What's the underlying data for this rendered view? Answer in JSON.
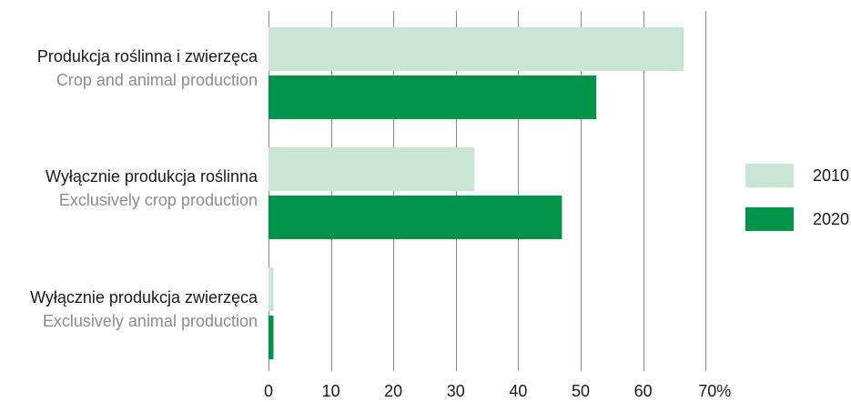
{
  "chart_data": {
    "type": "bar",
    "orientation": "horizontal",
    "categories": [
      {
        "label": "Produkcja roślinna i zwierzęca",
        "sublabel": "Crop and animal production"
      },
      {
        "label": "Wyłącznie produkcja roślinna",
        "sublabel": "Exclusively crop production"
      },
      {
        "label": "Wyłącznie produkcja zwierzęca",
        "sublabel": "Exclusively animal production"
      }
    ],
    "series": [
      {
        "name": "2010",
        "color": "#c9e5d3",
        "values": [
          66.5,
          33.0,
          0.8
        ]
      },
      {
        "name": "2020",
        "color": "#00944a",
        "values": [
          52.5,
          47.0,
          0.8
        ]
      }
    ],
    "xlim": [
      0,
      70
    ],
    "x_ticks": [
      0,
      10,
      20,
      30,
      40,
      50,
      60,
      70
    ],
    "x_tick_labels": [
      "0",
      "10",
      "20",
      "30",
      "40",
      "50",
      "60",
      "70%"
    ],
    "grid": true,
    "legend_position": "right"
  }
}
